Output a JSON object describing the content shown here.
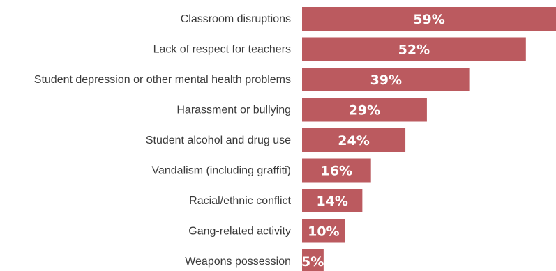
{
  "chart_data": {
    "type": "bar",
    "orientation": "horizontal",
    "categories": [
      "Classroom disruptions",
      "Lack of respect for teachers",
      "Student depression or other mental health problems",
      "Harassment or bullying",
      "Student alcohol and drug use",
      "Vandalism (including graffiti)",
      "Racial/ethnic conflict",
      "Gang-related activity",
      "Weapons possession"
    ],
    "values": [
      59,
      52,
      39,
      29,
      24,
      16,
      14,
      10,
      5
    ],
    "value_labels": [
      "59%",
      "52%",
      "39%",
      "29%",
      "24%",
      "16%",
      "14%",
      "10%",
      "5%"
    ],
    "unit": "%",
    "xlim": [
      0,
      59
    ],
    "grid": false,
    "legend": "none",
    "colors": {
      "bar": "#bb5a5f",
      "bar_text": "#ffffff",
      "category_text": "#3a3a3a"
    }
  }
}
